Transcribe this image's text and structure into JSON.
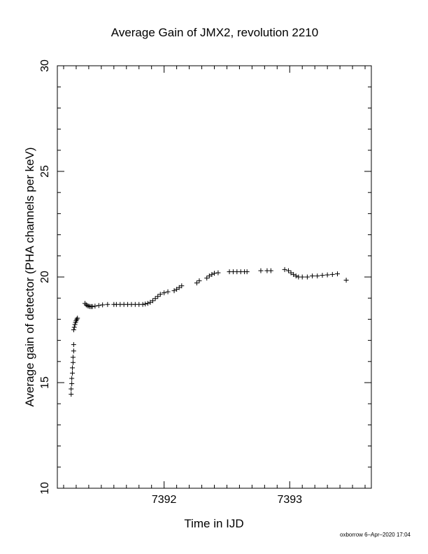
{
  "chart_data": {
    "type": "scatter",
    "title": "Average Gain of JMX2, revolution 2210",
    "xlabel": "Time in IJD",
    "ylabel": "Average gain of detector (PHA channels per keV)",
    "xlim": [
      7391.15,
      7393.65
    ],
    "ylim": [
      10,
      30
    ],
    "x_major_ticks": [
      7392,
      7393
    ],
    "x_tick_labels": [
      "7392",
      "7393"
    ],
    "x_minor_step": 0.1,
    "y_major_ticks": [
      10,
      15,
      20,
      25,
      30
    ],
    "y_tick_labels": [
      "10",
      "15",
      "20",
      "25",
      "30"
    ],
    "y_minor_step": 1,
    "grid": false,
    "legend": "none",
    "marker": "+",
    "series": [
      {
        "points": [
          [
            7391.26,
            14.45
          ],
          [
            7391.26,
            14.7
          ],
          [
            7391.265,
            14.95
          ],
          [
            7391.265,
            15.2
          ],
          [
            7391.27,
            15.45
          ],
          [
            7391.27,
            15.7
          ],
          [
            7391.275,
            15.95
          ],
          [
            7391.275,
            16.2
          ],
          [
            7391.28,
            16.5
          ],
          [
            7391.28,
            16.8
          ],
          [
            7391.28,
            17.5
          ],
          [
            7391.285,
            17.62
          ],
          [
            7391.29,
            17.75
          ],
          [
            7391.295,
            17.85
          ],
          [
            7391.3,
            17.93
          ],
          [
            7391.305,
            18.0
          ],
          [
            7391.31,
            18.05
          ],
          [
            7391.37,
            18.75
          ],
          [
            7391.38,
            18.68
          ],
          [
            7391.39,
            18.64
          ],
          [
            7391.4,
            18.62
          ],
          [
            7391.41,
            18.6
          ],
          [
            7391.42,
            18.6
          ],
          [
            7391.43,
            18.6
          ],
          [
            7391.45,
            18.62
          ],
          [
            7391.48,
            18.65
          ],
          [
            7391.51,
            18.68
          ],
          [
            7391.55,
            18.7
          ],
          [
            7391.6,
            18.7
          ],
          [
            7391.62,
            18.7
          ],
          [
            7391.65,
            18.7
          ],
          [
            7391.68,
            18.7
          ],
          [
            7391.71,
            18.7
          ],
          [
            7391.74,
            18.7
          ],
          [
            7391.77,
            18.7
          ],
          [
            7391.8,
            18.7
          ],
          [
            7391.83,
            18.7
          ],
          [
            7391.85,
            18.72
          ],
          [
            7391.87,
            18.75
          ],
          [
            7391.89,
            18.8
          ],
          [
            7391.91,
            18.88
          ],
          [
            7391.93,
            18.98
          ],
          [
            7391.95,
            19.08
          ],
          [
            7391.97,
            19.18
          ],
          [
            7392.0,
            19.25
          ],
          [
            7392.03,
            19.3
          ],
          [
            7392.08,
            19.35
          ],
          [
            7392.1,
            19.42
          ],
          [
            7392.12,
            19.5
          ],
          [
            7392.14,
            19.58
          ],
          [
            7392.26,
            19.72
          ],
          [
            7392.28,
            19.82
          ],
          [
            7392.34,
            19.95
          ],
          [
            7392.36,
            20.05
          ],
          [
            7392.38,
            20.12
          ],
          [
            7392.4,
            20.18
          ],
          [
            7392.43,
            20.2
          ],
          [
            7392.52,
            20.25
          ],
          [
            7392.55,
            20.25
          ],
          [
            7392.58,
            20.25
          ],
          [
            7392.61,
            20.25
          ],
          [
            7392.64,
            20.25
          ],
          [
            7392.66,
            20.25
          ],
          [
            7392.77,
            20.3
          ],
          [
            7392.82,
            20.3
          ],
          [
            7392.85,
            20.3
          ],
          [
            7392.96,
            20.35
          ],
          [
            7392.99,
            20.3
          ],
          [
            7393.01,
            20.2
          ],
          [
            7393.03,
            20.12
          ],
          [
            7393.05,
            20.05
          ],
          [
            7393.07,
            20.0
          ],
          [
            7393.1,
            20.0
          ],
          [
            7393.14,
            20.0
          ],
          [
            7393.18,
            20.05
          ],
          [
            7393.22,
            20.05
          ],
          [
            7393.26,
            20.08
          ],
          [
            7393.3,
            20.1
          ],
          [
            7393.34,
            20.12
          ],
          [
            7393.38,
            20.15
          ],
          [
            7393.45,
            19.85
          ]
        ]
      }
    ]
  },
  "footer": {
    "credit": "oxborrow  6–Apr–2020 17:04"
  }
}
